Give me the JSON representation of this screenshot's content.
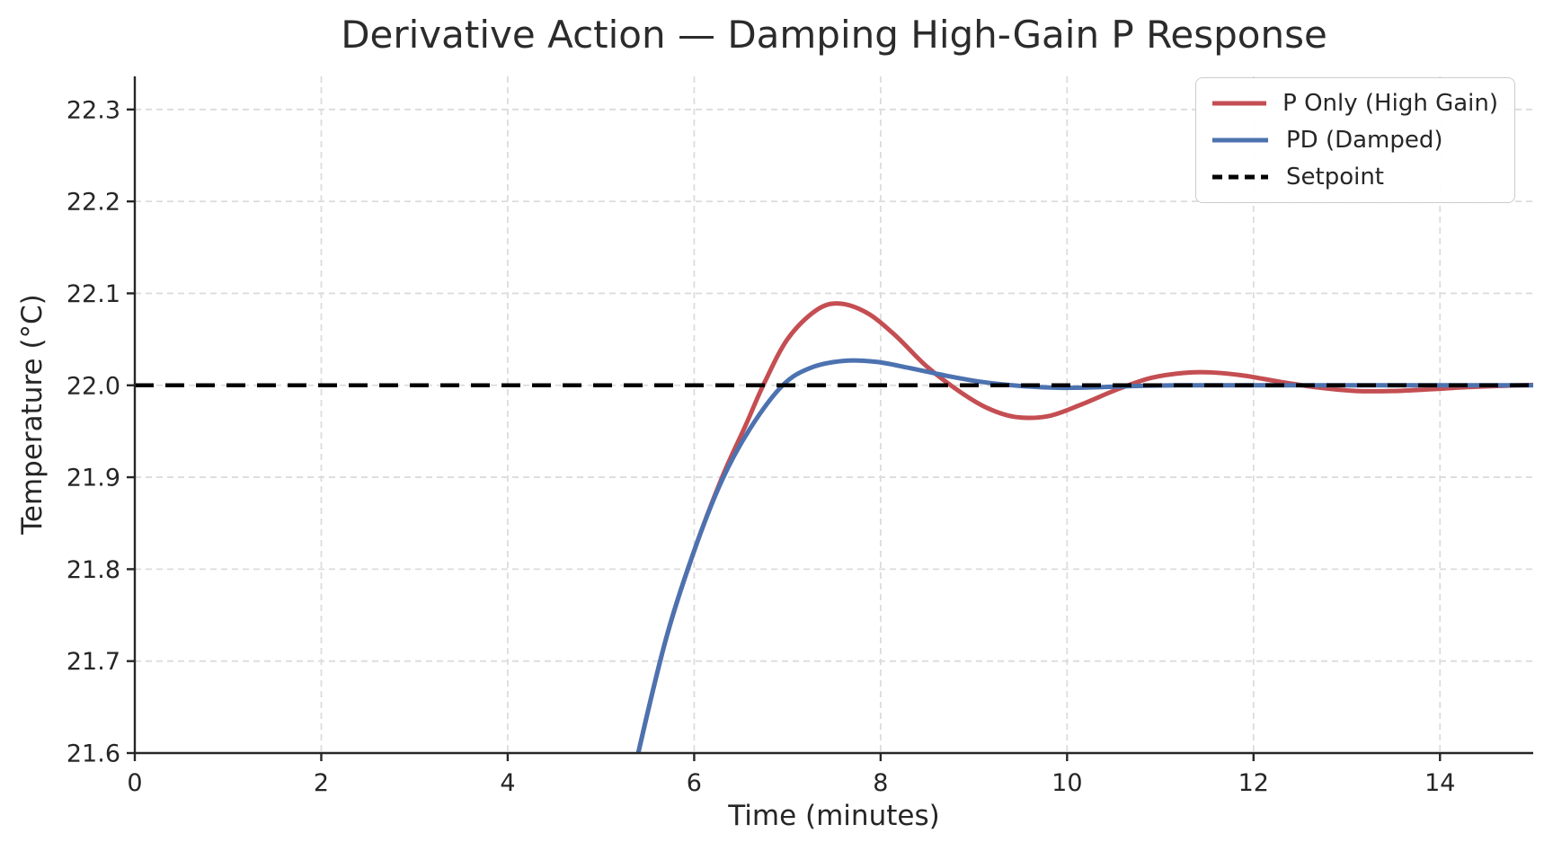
{
  "chart_data": {
    "type": "line",
    "title": "Derivative Action — Damping High-Gain P Response",
    "xlabel": "Time (minutes)",
    "ylabel": "Temperature (°C)",
    "xlim": [
      0,
      15
    ],
    "ylim": [
      21.6,
      22.336
    ],
    "xticks": [
      0,
      2,
      4,
      6,
      8,
      10,
      12,
      14
    ],
    "xtick_labels": [
      "0",
      "2",
      "4",
      "6",
      "8",
      "10",
      "12",
      "14"
    ],
    "yticks": [
      21.6,
      21.7,
      21.8,
      21.9,
      22.0,
      22.1,
      22.2,
      22.3
    ],
    "ytick_labels": [
      "21.6",
      "21.7",
      "21.8",
      "21.9",
      "22.0",
      "22.1",
      "22.2",
      "22.3"
    ],
    "grid": {
      "visible": true,
      "style": "dashed",
      "color": "#dcdcdc"
    },
    "setpoint_value": 22.0,
    "legend": {
      "position": "upper right",
      "entries": [
        {
          "label": "P Only (High Gain)",
          "color": "#c44e52",
          "dash": "solid"
        },
        {
          "label": "PD (Damped)",
          "color": "#4c72b0",
          "dash": "solid"
        },
        {
          "label": "Setpoint",
          "color": "#000000",
          "dash": "dashed"
        }
      ]
    },
    "series": [
      {
        "name": "P Only (High Gain)",
        "color": "#c44e52",
        "dash": "solid",
        "points": [
          [
            5.1,
            21.46
          ],
          [
            5.4,
            21.6
          ],
          [
            5.7,
            21.725
          ],
          [
            6.0,
            21.82
          ],
          [
            6.3,
            21.9
          ],
          [
            6.55,
            21.956
          ],
          [
            6.75,
            22.002
          ],
          [
            7.0,
            22.05
          ],
          [
            7.3,
            22.081
          ],
          [
            7.55,
            22.089
          ],
          [
            7.85,
            22.079
          ],
          [
            8.15,
            22.055
          ],
          [
            8.5,
            22.02
          ],
          [
            8.85,
            21.993
          ],
          [
            9.15,
            21.975
          ],
          [
            9.45,
            21.9655
          ],
          [
            9.8,
            21.9665
          ],
          [
            10.15,
            21.979
          ],
          [
            10.55,
            21.996
          ],
          [
            10.9,
            22.008
          ],
          [
            11.25,
            22.0135
          ],
          [
            11.55,
            22.014
          ],
          [
            11.9,
            22.0105
          ],
          [
            12.3,
            22.0035
          ],
          [
            12.7,
            21.9975
          ],
          [
            13.1,
            21.9938
          ],
          [
            13.5,
            21.9938
          ],
          [
            13.9,
            21.9957
          ],
          [
            14.3,
            21.998
          ],
          [
            14.7,
            21.9995
          ],
          [
            15.05,
            22.0005
          ]
        ]
      },
      {
        "name": "PD (Damped)",
        "color": "#4c72b0",
        "dash": "solid",
        "points": [
          [
            5.1,
            21.46
          ],
          [
            5.4,
            21.6
          ],
          [
            5.7,
            21.725
          ],
          [
            6.0,
            21.82
          ],
          [
            6.3,
            21.897
          ],
          [
            6.6,
            21.953
          ],
          [
            6.95,
            22.0
          ],
          [
            7.25,
            22.019
          ],
          [
            7.6,
            22.0265
          ],
          [
            7.95,
            22.0255
          ],
          [
            8.3,
            22.019
          ],
          [
            8.7,
            22.0105
          ],
          [
            9.1,
            22.0035
          ],
          [
            9.5,
            21.9993
          ],
          [
            9.9,
            21.9973
          ],
          [
            10.3,
            21.9978
          ],
          [
            10.7,
            21.9992
          ],
          [
            11.1,
            21.9999
          ],
          [
            11.6,
            22.0
          ],
          [
            12.4,
            22.0
          ],
          [
            13.3,
            22.0
          ],
          [
            14.2,
            22.0
          ],
          [
            15.05,
            22.0
          ]
        ]
      },
      {
        "name": "Setpoint",
        "color": "#000000",
        "dash": "dashed",
        "points": [
          [
            0,
            22.0
          ],
          [
            15,
            22.0
          ]
        ]
      }
    ],
    "colors": {
      "p_only": "#c44e52",
      "pd": "#4c72b0",
      "setpoint": "#000000",
      "grid": "#dcdcdc",
      "text": "#262626"
    }
  }
}
